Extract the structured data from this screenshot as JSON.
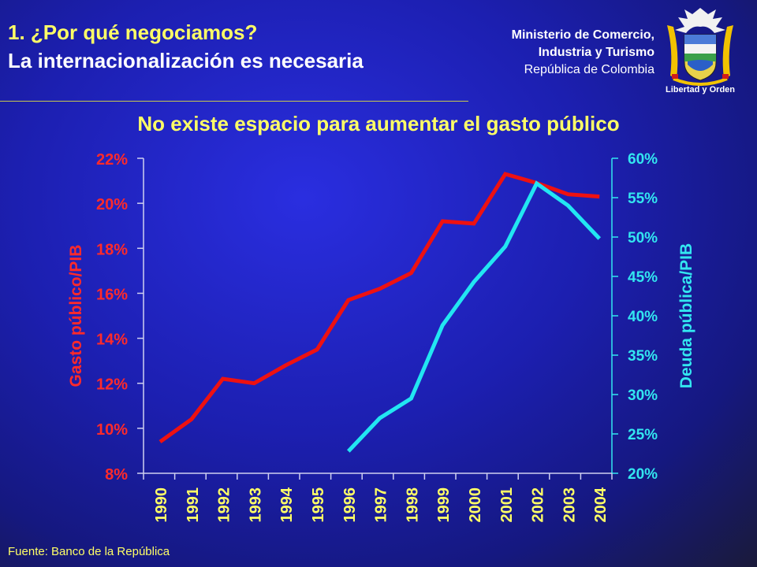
{
  "header": {
    "title_line1": "1. ¿Por qué negociamos?",
    "title_line2": "La internacionalización es necesaria"
  },
  "ministry": {
    "line1": "Ministerio de Comercio,",
    "line2": "Industria y Turismo",
    "line3": "República de Colombia",
    "motto": "Libertad y Orden"
  },
  "colors": {
    "background": "#1c1fb0",
    "title_accent": "#ffff66",
    "left_axis": "#ff2a2a",
    "right_axis": "#33e6f0",
    "series_gasto": "#ee1111",
    "series_deuda": "#22e6f2"
  },
  "chart_data": {
    "type": "line",
    "title": "No existe espacio para aumentar el gasto público",
    "x": [
      "1990",
      "1991",
      "1992",
      "1993",
      "1994",
      "1995",
      "1996",
      "1997",
      "1998",
      "1999",
      "2000",
      "2001",
      "2002",
      "2003",
      "2004"
    ],
    "y_left": {
      "label": "Gasto público/PIB",
      "lim": [
        8,
        22
      ],
      "ticks": [
        "8%",
        "10%",
        "12%",
        "14%",
        "16%",
        "18%",
        "20%",
        "22%"
      ]
    },
    "y_right": {
      "label": "Deuda pública/PIB",
      "lim": [
        20,
        60
      ],
      "ticks": [
        "20%",
        "25%",
        "30%",
        "35%",
        "40%",
        "45%",
        "50%",
        "55%",
        "60%"
      ]
    },
    "series": [
      {
        "name": "Gasto público/PIB",
        "axis": "left",
        "values": [
          9.4,
          10.4,
          12.2,
          12.0,
          12.8,
          13.5,
          15.7,
          16.2,
          16.9,
          19.2,
          19.1,
          21.3,
          20.9,
          20.4,
          20.3
        ]
      },
      {
        "name": "Deuda pública/PIB",
        "axis": "right",
        "values": [
          null,
          null,
          null,
          null,
          null,
          null,
          22.8,
          27.0,
          29.5,
          38.8,
          44.3,
          48.8,
          56.8,
          54.0,
          49.8
        ]
      }
    ],
    "grid": false,
    "legend": "none"
  },
  "footer": {
    "source": "Fuente: Banco de la República"
  }
}
